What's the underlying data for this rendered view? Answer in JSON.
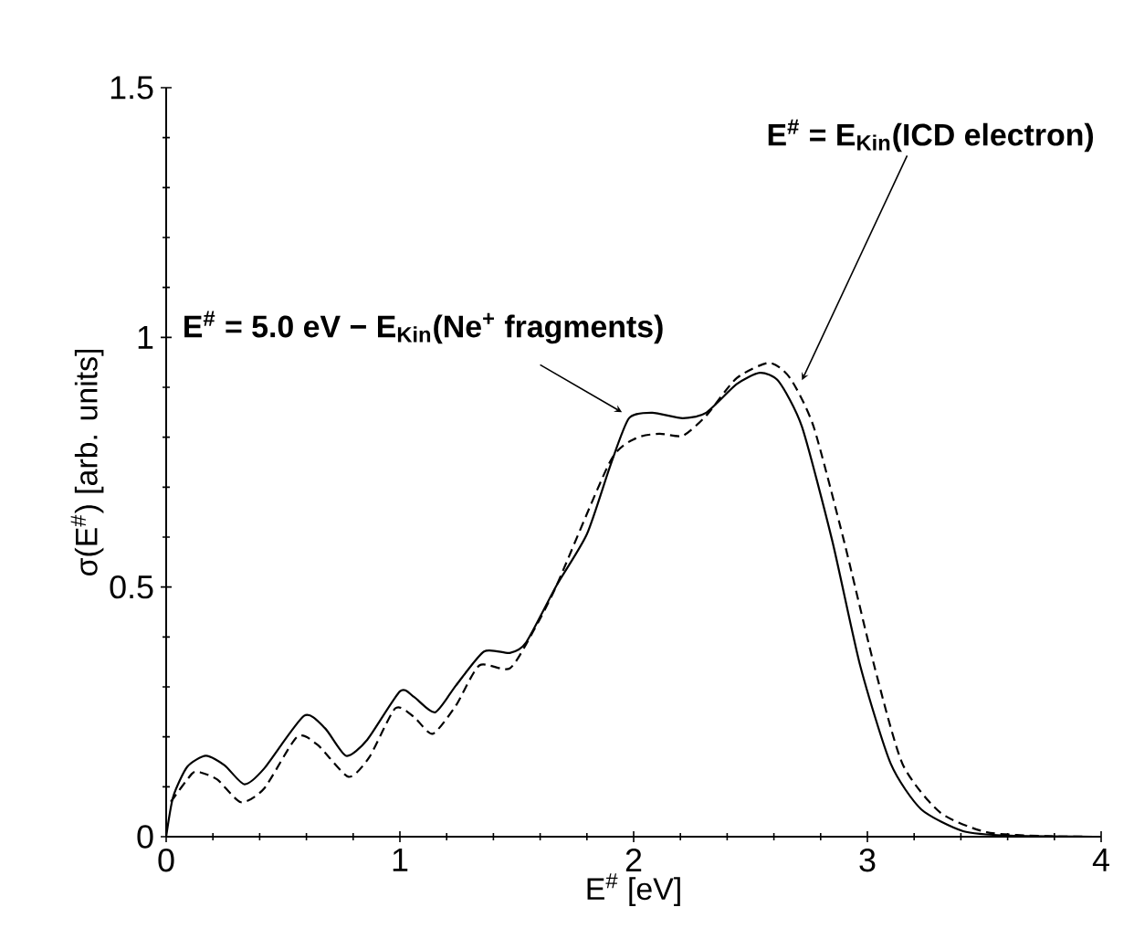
{
  "chart_data": {
    "type": "line",
    "xlabel": "E$^{#}$ [eV]",
    "ylabel": "σ(E$^{#}$) [arb. units]",
    "xlim": [
      0,
      4
    ],
    "ylim": [
      0,
      1.5
    ],
    "xticks": [
      0,
      1,
      2,
      3,
      4
    ],
    "yticks": [
      0,
      0.5,
      1,
      1.5
    ],
    "marker": "none",
    "series": [
      {
        "color": "#000000",
        "line_style": "solid",
        "x": [
          0,
          0.03,
          0.09,
          0.17,
          0.25,
          0.335,
          0.42,
          0.59,
          0.68,
          0.77,
          0.86,
          1.0,
          1.06,
          1.15,
          1.24,
          1.36,
          1.47,
          1.54,
          1.67,
          1.8,
          1.9,
          1.98,
          2.08,
          2.21,
          2.31,
          2.44,
          2.54,
          2.62,
          2.72,
          2.85,
          2.97,
          3.1,
          3.23,
          3.41,
          3.61,
          3.97
        ],
        "values": [
          0,
          0.08,
          0.14,
          0.162,
          0.143,
          0.105,
          0.137,
          0.242,
          0.217,
          0.162,
          0.194,
          0.291,
          0.28,
          0.249,
          0.303,
          0.371,
          0.368,
          0.389,
          0.503,
          0.606,
          0.743,
          0.838,
          0.849,
          0.838,
          0.849,
          0.906,
          0.929,
          0.912,
          0.821,
          0.592,
          0.341,
          0.146,
          0.055,
          0.011,
          0.002,
          0
        ]
      },
      {
        "color": "#000000",
        "line_style": "dashed",
        "x": [
          0.02,
          0.11,
          0.145,
          0.22,
          0.32,
          0.42,
          0.56,
          0.65,
          0.78,
          0.87,
          0.98,
          1.06,
          1.14,
          1.24,
          1.34,
          1.47,
          1.57,
          1.67,
          1.9,
          2.01,
          2.11,
          2.21,
          2.31,
          2.44,
          2.58,
          2.67,
          2.77,
          2.9,
          3.03,
          3.15,
          3.31,
          3.51,
          3.77,
          3.97
        ],
        "values": [
          0.07,
          0.126,
          0.129,
          0.114,
          0.069,
          0.097,
          0.2,
          0.183,
          0.12,
          0.16,
          0.257,
          0.24,
          0.206,
          0.263,
          0.343,
          0.337,
          0.411,
          0.503,
          0.752,
          0.798,
          0.807,
          0.803,
          0.843,
          0.918,
          0.949,
          0.918,
          0.821,
          0.592,
          0.341,
          0.146,
          0.049,
          0.009,
          0.001,
          0
        ]
      }
    ],
    "annotations": [
      {
        "text": "E$^{#}$ = 5.0 eV − E$_{Kin}$(Ne$^{+}$ fragments)",
        "x": 1.95,
        "y": 0.85
      },
      {
        "text": "E$^{#}$ = E$_{Kin}$(ICD electron)",
        "x": 2.72,
        "y": 0.914
      }
    ]
  }
}
